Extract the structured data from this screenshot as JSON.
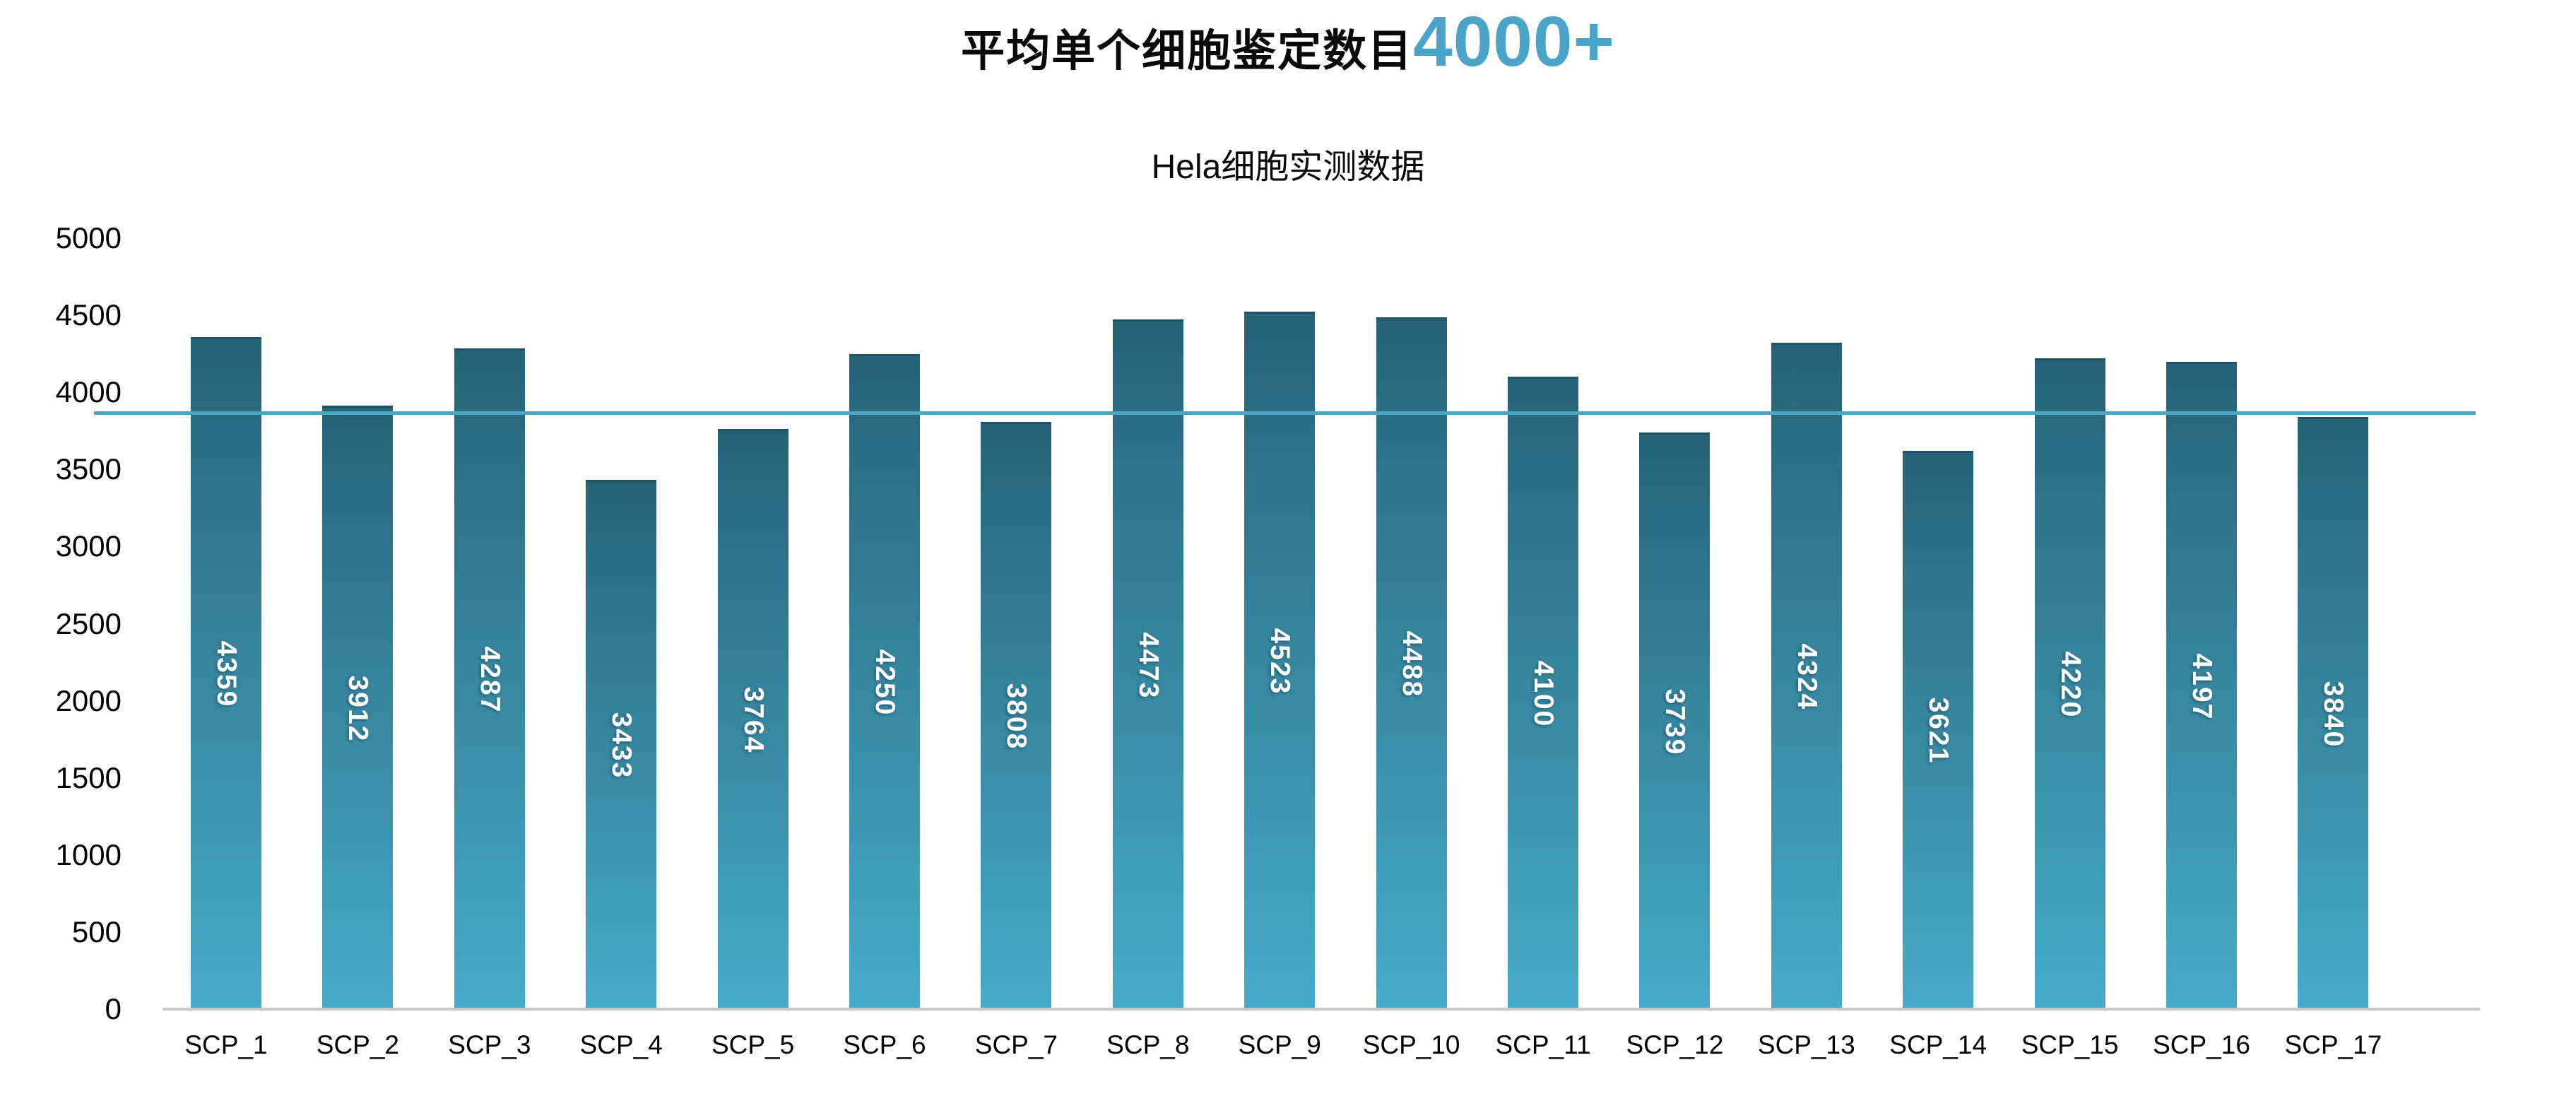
{
  "title": {
    "text": "平均单个细胞鉴定数目",
    "highlight": "4000+"
  },
  "subtitle": "Hela细胞实测数据",
  "colors": {
    "accent": "#4AA3C8",
    "bar_gradient_top": "#266377",
    "bar_gradient_bottom": "#47ABC9",
    "reference_line": "#4BA6C2",
    "axis_line": "#C9C9C9",
    "bar_value_label": "#FFFFFF"
  },
  "chart_data": {
    "type": "bar",
    "title": "平均单个细胞鉴定数目4000+",
    "subtitle": "Hela细胞实测数据",
    "categories": [
      "SCP_1",
      "SCP_2",
      "SCP_3",
      "SCP_4",
      "SCP_5",
      "SCP_6",
      "SCP_7",
      "SCP_8",
      "SCP_9",
      "SCP_10",
      "SCP_11",
      "SCP_12",
      "SCP_13",
      "SCP_14",
      "SCP_15",
      "SCP_16",
      "SCP_17"
    ],
    "values": [
      4359,
      3912,
      4287,
      3433,
      3764,
      4250,
      3808,
      4473,
      4523,
      4488,
      4100,
      3739,
      4324,
      3621,
      4220,
      4197,
      3840
    ],
    "xlabel": "",
    "ylabel": "",
    "ylim": [
      0,
      5000
    ],
    "yticks": [
      0,
      500,
      1000,
      1500,
      2000,
      2500,
      3000,
      3500,
      4000,
      4500,
      5000
    ],
    "grid": false,
    "legend": false,
    "bar_value_labels_rotation_deg": 90,
    "reference_line": {
      "value": 3875
    }
  }
}
